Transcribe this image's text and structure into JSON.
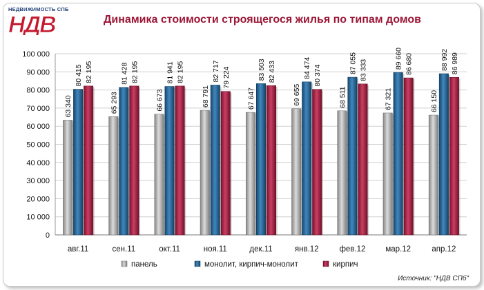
{
  "logo": {
    "tagline": "НЕДВИЖИМОСТЬ СПБ",
    "mark": "НДВ"
  },
  "colors": {
    "panel": "#b3b3b3",
    "monolit": "#1b5f94",
    "kirpich": "#a3173c",
    "title": "#9b1535"
  },
  "source": "Источник: \"НДВ СПб\"",
  "chart_data": {
    "type": "bar",
    "title": "Динамика стоимости строящегося жилья по типам домов",
    "xlabel": "",
    "ylabel": "",
    "ylim": [
      0,
      100000
    ],
    "yticks": [
      "0",
      "10 000",
      "20 000",
      "30 000",
      "40 000",
      "50 000",
      "60 000",
      "70 000",
      "80 000",
      "90 000",
      "100 000"
    ],
    "ytick_values": [
      0,
      10000,
      20000,
      30000,
      40000,
      50000,
      60000,
      70000,
      80000,
      90000,
      100000
    ],
    "grid": true,
    "legend_position": "bottom",
    "categories": [
      "авг.11",
      "сен.11",
      "окт.11",
      "ноя.11",
      "дек.11",
      "янв.12",
      "фев.12",
      "мар.12",
      "апр.12"
    ],
    "series": [
      {
        "name": "панель",
        "color": "#b3b3b3",
        "values": [
          63340,
          65293,
          66673,
          68791,
          67647,
          69655,
          68511,
          67321,
          66150
        ],
        "labels": [
          "63 340",
          "65 293",
          "66 673",
          "68 791",
          "67 647",
          "69 655",
          "68 511",
          "67 321",
          "66 150"
        ]
      },
      {
        "name": "монолит, кирпич-монолит",
        "color": "#1b5f94",
        "values": [
          80415,
          81428,
          81941,
          82717,
          83503,
          84474,
          87055,
          89660,
          88992
        ],
        "labels": [
          "80 415",
          "81 428",
          "81 941",
          "82 717",
          "83 503",
          "84 474",
          "87 055",
          "89 660",
          "88 992"
        ]
      },
      {
        "name": "кирпич",
        "color": "#a3173c",
        "values": [
          82195,
          82195,
          82195,
          79224,
          82433,
          80374,
          83333,
          86680,
          86989
        ],
        "labels": [
          "82 195",
          "82 195",
          "82 195",
          "79 224",
          "82 433",
          "80 374",
          "83 333",
          "86 680",
          "86 989"
        ]
      }
    ]
  }
}
